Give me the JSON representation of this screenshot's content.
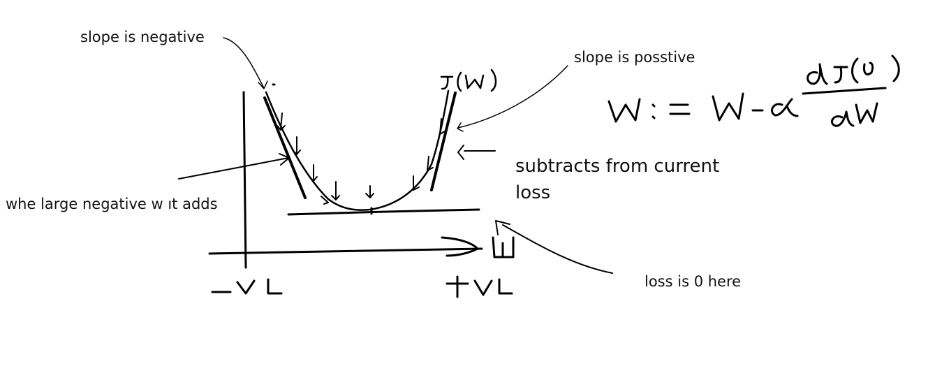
{
  "annotations": {
    "slope_negative": "slope is negative",
    "slope_positive": "slope is posstive",
    "subtracts": "subtracts from current loss",
    "adds": "whe large negative w ıt adds",
    "loss_zero": "loss is 0 here"
  },
  "handwritten": {
    "curve_label": "J(w)",
    "update_rule": "W := W - α dJ(w)/dw",
    "x_axis_label": "W",
    "negative_end": "-ve",
    "positive_end": "+ve"
  },
  "colors": {
    "ink": "#000000",
    "text": "#111111",
    "background": "#ffffff"
  }
}
